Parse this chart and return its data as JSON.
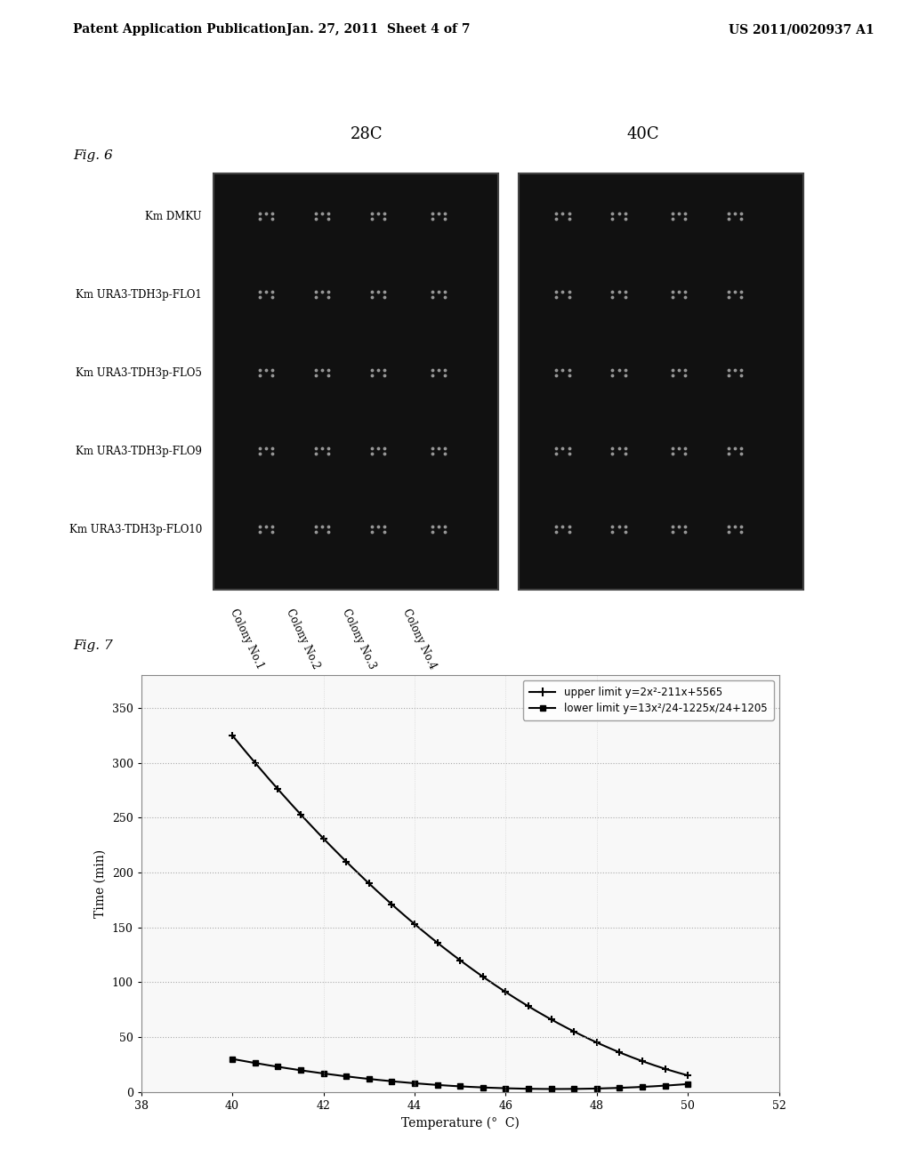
{
  "page_header_left": "Patent Application Publication",
  "page_header_center": "Jan. 27, 2011  Sheet 4 of 7",
  "page_header_right": "US 2011/0020937 A1",
  "fig6_label": "Fig. 6",
  "fig6_title_28c": "28C",
  "fig6_title_40c": "40C",
  "fig6_row_labels": [
    "Km DMKU",
    "Km URA3-TDH3p-FLO1",
    "Km URA3-TDH3p-FLO5",
    "Km URA3-TDH3p-FLO9",
    "Km URA3-TDH3p-FLO10"
  ],
  "fig6_col_labels": [
    "Colony No.1",
    "Colony No.2",
    "Colony No.3",
    "Colony No.4"
  ],
  "fig7_label": "Fig. 7",
  "fig7_xlabel": "Temperature (°  C)",
  "fig7_ylabel": "Time (min)",
  "fig7_xlim": [
    38,
    52
  ],
  "fig7_ylim": [
    0,
    380
  ],
  "fig7_xticks": [
    38,
    40,
    42,
    44,
    46,
    48,
    50,
    52
  ],
  "fig7_yticks": [
    0,
    50,
    100,
    150,
    200,
    250,
    300,
    350
  ],
  "upper_label": "upper limit y=2x²-211x+5565",
  "lower_label": "lower limit y=13x²/24-1225x/24+1205",
  "background_color": "#ffffff",
  "line_color": "#000000"
}
